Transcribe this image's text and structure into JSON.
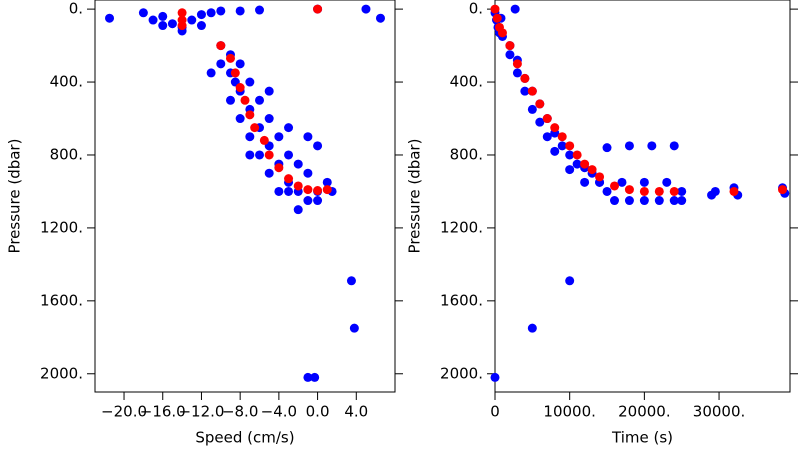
{
  "chart_data": [
    {
      "type": "scatter",
      "xlabel": "Speed (cm/s)",
      "ylabel": "Pressure (dbar)",
      "xlim": [
        -23,
        8
      ],
      "ylim": [
        2100,
        -50
      ],
      "xticks": [
        {
          "value": -20,
          "label": "−20.0"
        },
        {
          "value": -16,
          "label": "−16.0"
        },
        {
          "value": -12,
          "label": "−12.0"
        },
        {
          "value": -8,
          "label": "−8.0"
        },
        {
          "value": -4,
          "label": "−4.0"
        },
        {
          "value": 0,
          "label": "0.0"
        },
        {
          "value": 4,
          "label": "4.0"
        }
      ],
      "yticks": [
        {
          "value": 0,
          "label": "0."
        },
        {
          "value": 400,
          "label": "400."
        },
        {
          "value": 800,
          "label": "800."
        },
        {
          "value": 1200,
          "label": "1200."
        },
        {
          "value": 1600,
          "label": "1600."
        },
        {
          "value": 2000,
          "label": "2000."
        }
      ],
      "series": [
        {
          "color": "#0000ff",
          "x": [
            -21.5,
            -18,
            -16,
            -15,
            -14,
            -13,
            -12,
            -11,
            -10,
            -8,
            -6,
            -14,
            -16,
            -17,
            -12,
            5,
            6.5,
            0,
            -10,
            -9,
            -10,
            -9,
            -8.5,
            -8,
            -9,
            -7,
            -8,
            -6,
            -7,
            -5,
            -6,
            -4,
            -5,
            -3,
            -2,
            -1,
            0,
            1,
            -1,
            -3,
            -7,
            -6,
            -5,
            -4,
            -3,
            -2,
            -4,
            0,
            -2,
            -5,
            -8,
            -11,
            -7,
            -3,
            -1,
            0,
            1.5,
            3.5,
            3.8,
            -1,
            -0.3
          ],
          "values": [
            50,
            20,
            40,
            80,
            100,
            60,
            30,
            20,
            10,
            10,
            5,
            120,
            90,
            60,
            90,
            0,
            50,
            0,
            200,
            250,
            300,
            350,
            400,
            450,
            500,
            550,
            600,
            650,
            700,
            750,
            800,
            850,
            900,
            950,
            1000,
            1050,
            1000,
            950,
            900,
            1000,
            400,
            500,
            600,
            700,
            800,
            850,
            1000,
            1050,
            1100,
            450,
            300,
            350,
            800,
            650,
            700,
            750,
            1000,
            1490,
            1750,
            2020,
            2020
          ]
        },
        {
          "color": "#ff0000",
          "x": [
            -14,
            -14,
            -14,
            -10,
            -9,
            -8.5,
            -8,
            -7.5,
            -7,
            -6.5,
            -5.5,
            -5,
            -4,
            -3,
            -2,
            -1,
            0,
            1,
            0
          ],
          "values": [
            20,
            60,
            90,
            200,
            270,
            350,
            430,
            500,
            580,
            650,
            720,
            800,
            870,
            930,
            970,
            990,
            995,
            990,
            0
          ]
        }
      ]
    },
    {
      "type": "scatter",
      "xlabel": "Time (s)",
      "ylabel": "Pressure (dbar)",
      "xlim": [
        0,
        39500
      ],
      "ylim": [
        2100,
        -50
      ],
      "xticks": [
        0,
        {
          "value": 10000,
          "label": "10000."
        },
        {
          "value": 20000,
          "label": "20000."
        },
        {
          "value": 30000,
          "label": "30000."
        }
      ],
      "yticks": [
        {
          "value": 0,
          "label": "0."
        },
        {
          "value": 400,
          "label": "400."
        },
        {
          "value": 800,
          "label": "800."
        },
        {
          "value": 1200,
          "label": "1200."
        },
        {
          "value": 1600,
          "label": "1600."
        },
        {
          "value": 2000,
          "label": "2000."
        }
      ],
      "series": [
        {
          "color": "#0000ff",
          "x": [
            0,
            200,
            400,
            600,
            800,
            1000,
            2000,
            2000,
            3000,
            3000,
            4000,
            4000,
            5000,
            5000,
            6000,
            6000,
            7000,
            7000,
            8000,
            8000,
            9000,
            10000,
            10000,
            11000,
            12000,
            12000,
            13000,
            14000,
            15000,
            16000,
            18000,
            20000,
            22000,
            24000,
            15000,
            18000,
            21000,
            24000,
            14000,
            17000,
            20000,
            23000,
            25000,
            25000,
            29000,
            29500,
            32000,
            32500,
            38500,
            38800,
            10000,
            5000,
            0,
            2700
          ],
          "values": [
            20,
            60,
            100,
            130,
            50,
            150,
            200,
            250,
            280,
            350,
            380,
            450,
            450,
            550,
            520,
            620,
            600,
            700,
            680,
            780,
            750,
            800,
            880,
            850,
            870,
            950,
            900,
            950,
            1000,
            1050,
            1050,
            1050,
            1050,
            1050,
            760,
            750,
            750,
            750,
            950,
            950,
            950,
            950,
            1000,
            1050,
            1020,
            1000,
            980,
            1020,
            980,
            1010,
            1490,
            1750,
            2020,
            0
          ]
        },
        {
          "color": "#ff0000",
          "x": [
            0,
            300,
            600,
            1000,
            2000,
            3000,
            4000,
            5000,
            6000,
            7000,
            8000,
            9000,
            10000,
            11000,
            12000,
            13000,
            14000,
            16000,
            18000,
            20000,
            22000,
            24000,
            32000,
            38500
          ],
          "values": [
            0,
            50,
            100,
            130,
            200,
            300,
            380,
            450,
            520,
            600,
            650,
            700,
            750,
            800,
            850,
            880,
            920,
            970,
            990,
            1000,
            1000,
            1000,
            1000,
            990
          ]
        }
      ]
    }
  ]
}
